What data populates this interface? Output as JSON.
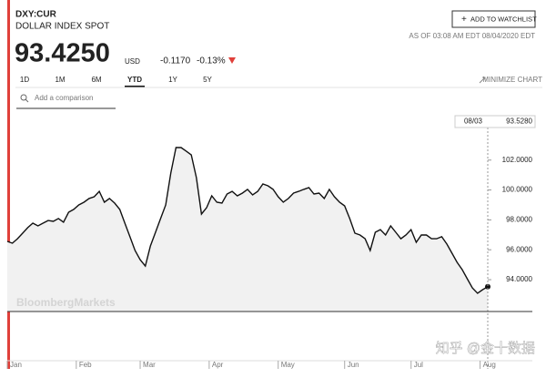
{
  "header": {
    "ticker": "DXY:CUR",
    "name": "DOLLAR INDEX SPOT",
    "price": "93.4250",
    "currency": "USD",
    "change": "-0.1170",
    "change_pct": "-0.13%",
    "watchlist_button": "ADD TO WATCHLIST",
    "as_of": "AS OF 03:08 AM EDT 08/04/2020 EDT"
  },
  "tabs": [
    "1D",
    "1M",
    "6M",
    "YTD",
    "1Y",
    "5Y"
  ],
  "active_tab": 3,
  "minimize": "MINIMIZE CHART",
  "comparison_placeholder": "Add a comparison",
  "watermark": "BloombergMarkets",
  "site_watermark": "知乎 @金十数据",
  "chart_data": {
    "type": "line",
    "color": "#111111",
    "fill": "#f1f1f1",
    "values": [
      96.56,
      96.44,
      96.74,
      97.11,
      97.48,
      97.78,
      97.6,
      97.78,
      97.96,
      97.9,
      98.09,
      97.84,
      98.51,
      98.7,
      99.0,
      99.18,
      99.43,
      99.55,
      99.91,
      99.18,
      99.43,
      99.12,
      98.7,
      97.78,
      96.87,
      95.95,
      95.34,
      94.91,
      96.26,
      97.17,
      98.09,
      99.0,
      101.13,
      102.84,
      102.84,
      102.6,
      102.35,
      100.83,
      98.39,
      98.82,
      99.61,
      99.18,
      99.12,
      99.73,
      99.91,
      99.61,
      99.79,
      100.04,
      99.67,
      99.91,
      100.4,
      100.28,
      100.04,
      99.55,
      99.18,
      99.43,
      99.79,
      99.91,
      100.04,
      100.16,
      99.73,
      99.79,
      99.43,
      100.04,
      99.55,
      99.18,
      98.94,
      98.09,
      97.11,
      96.99,
      96.74,
      95.95,
      97.17,
      97.35,
      96.99,
      97.6,
      97.17,
      96.74,
      96.99,
      97.35,
      96.5,
      96.99,
      96.99,
      96.74,
      96.74,
      96.87,
      96.38,
      95.77,
      95.16,
      94.67,
      94.06,
      93.45,
      93.09,
      93.33,
      93.528
    ],
    "xlim": [
      0,
      94
    ],
    "xticks": [
      {
        "value": 0,
        "label": "Jan"
      },
      {
        "value": 13.5,
        "label": "Feb"
      },
      {
        "value": 26,
        "label": "Mar"
      },
      {
        "value": 39.5,
        "label": "Apr"
      },
      {
        "value": 53,
        "label": "May"
      },
      {
        "value": 66,
        "label": "Jun"
      },
      {
        "value": 79,
        "label": "Jul"
      },
      {
        "value": 92.5,
        "label": "Aug"
      }
    ],
    "ylim": [
      91.87,
      104.91
    ],
    "yticks": [
      {
        "value": 94,
        "label": "94.0000"
      },
      {
        "value": 96,
        "label": "96.0000"
      },
      {
        "value": 98,
        "label": "98.0000"
      },
      {
        "value": 100,
        "label": "100.0000"
      },
      {
        "value": 102,
        "label": "102.0000"
      }
    ],
    "current": {
      "value": 93.528,
      "label": "93.5280",
      "date": "08/03"
    }
  }
}
